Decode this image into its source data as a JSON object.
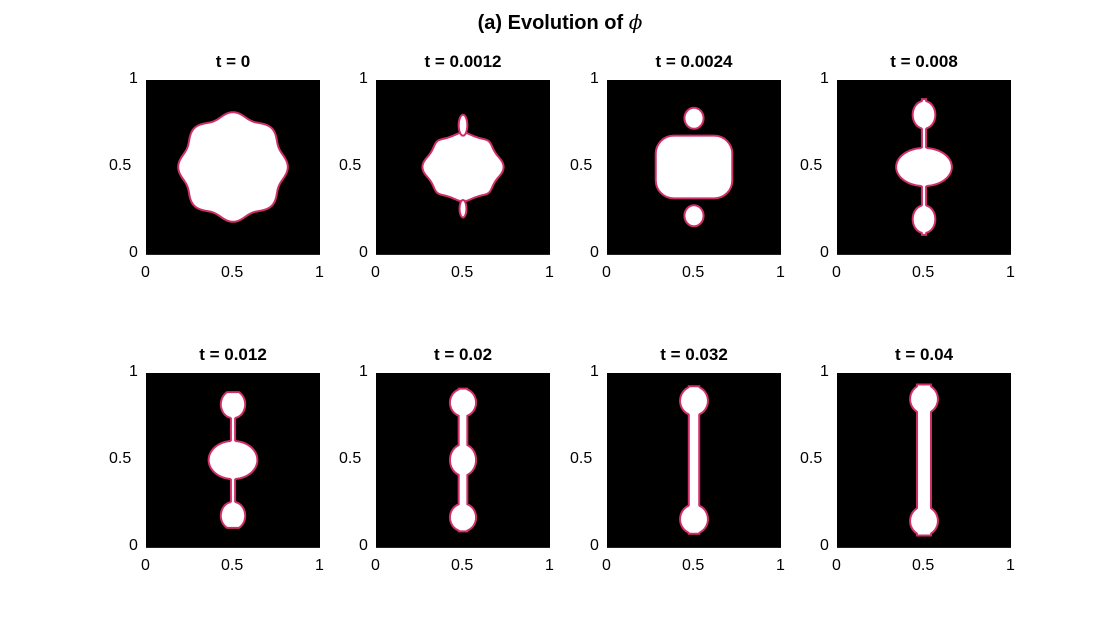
{
  "figure": {
    "title_prefix": "(a) Evolution of",
    "title_symbol": "ϕ"
  },
  "chart_data": {
    "type": "heatmap",
    "title": "(a) Evolution of ϕ",
    "colormap": "gray",
    "interface_color": "#d0306a",
    "xlim": [
      0,
      1
    ],
    "ylim": [
      0,
      1
    ],
    "xticks": [
      "0",
      "0.5",
      "1"
    ],
    "yticks": [
      "0",
      "0.5",
      "1"
    ],
    "panels": [
      {
        "title": "t = 0",
        "t": 0,
        "shape": "wavy-disk",
        "center": [
          0.5,
          0.5
        ],
        "radius": 0.3
      },
      {
        "title": "t = 0.0012",
        "t": 0.0012,
        "shape": "wavy-disk-necks",
        "center": [
          0.5,
          0.5
        ],
        "radius_x": 0.22,
        "radius_y": 0.19
      },
      {
        "title": "t = 0.0024",
        "t": 0.0024,
        "shape": "block-with-droplets",
        "center": [
          0.5,
          0.5
        ],
        "half_width": 0.22,
        "half_height": 0.18,
        "droplets_y": [
          0.78,
          0.22
        ],
        "droplet_radius": 0.055
      },
      {
        "title": "t = 0.008",
        "t": 0.008,
        "shape": "three-lobes",
        "lobes": [
          {
            "y": 0.2,
            "rx": 0.065,
            "ry": 0.08
          },
          {
            "y": 0.5,
            "rx": 0.16,
            "ry": 0.11
          },
          {
            "y": 0.8,
            "rx": 0.065,
            "ry": 0.08
          }
        ]
      },
      {
        "title": "t = 0.012",
        "t": 0.012,
        "shape": "three-lobes",
        "lobes": [
          {
            "y": 0.18,
            "rx": 0.07,
            "ry": 0.08
          },
          {
            "y": 0.5,
            "rx": 0.14,
            "ry": 0.11
          },
          {
            "y": 0.82,
            "rx": 0.07,
            "ry": 0.08
          }
        ]
      },
      {
        "title": "t = 0.02",
        "t": 0.02,
        "shape": "beaded-column",
        "lobes": [
          {
            "y": 0.17,
            "rx": 0.075,
            "ry": 0.08
          },
          {
            "y": 0.5,
            "rx": 0.075,
            "ry": 0.09
          },
          {
            "y": 0.83,
            "rx": 0.075,
            "ry": 0.08
          }
        ]
      },
      {
        "title": "t = 0.032",
        "t": 0.032,
        "shape": "dumbbell",
        "ends_y": [
          0.16,
          0.84
        ],
        "end_radius": 0.08,
        "neck_half_width": 0.03
      },
      {
        "title": "t = 0.04",
        "t": 0.04,
        "shape": "dumbbell",
        "ends_y": [
          0.15,
          0.85
        ],
        "end_radius": 0.08,
        "neck_half_width": 0.04
      }
    ]
  }
}
